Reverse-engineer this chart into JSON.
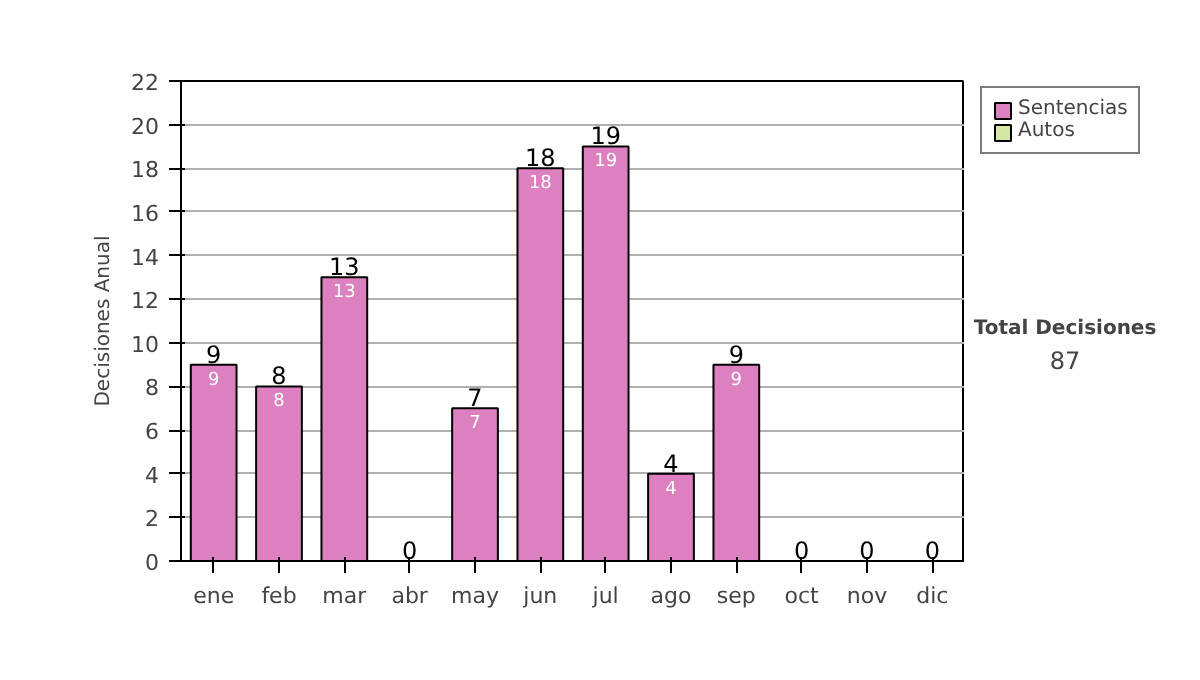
{
  "chart_data": {
    "type": "bar",
    "stacked": true,
    "ylabel": "Decisiones Anual",
    "categories": [
      "ene",
      "feb",
      "mar",
      "abr",
      "may",
      "jun",
      "jul",
      "ago",
      "sep",
      "oct",
      "nov",
      "dic"
    ],
    "series": [
      {
        "name": "Sentencias",
        "color": "#dd80bf",
        "values": [
          9,
          8,
          13,
          0,
          7,
          18,
          19,
          4,
          9,
          0,
          0,
          0
        ],
        "value_labels": [
          "9",
          "8",
          "13",
          null,
          "7",
          "18",
          "19",
          "4",
          "9",
          null,
          null,
          null
        ]
      },
      {
        "name": "Autos",
        "color": "#d4e8a4",
        "values": [
          0,
          0,
          0,
          0,
          0,
          0,
          0,
          0,
          0,
          0,
          0,
          0
        ]
      }
    ],
    "totals": [
      "9",
      "8",
      "13",
      "0",
      "7",
      "18",
      "19",
      "4",
      "9",
      "0",
      "0",
      "0"
    ],
    "ylim": [
      0,
      22
    ],
    "yticks": [
      0,
      2,
      4,
      6,
      8,
      10,
      12,
      14,
      16,
      18,
      20,
      22
    ],
    "grid": "y",
    "legend": "right",
    "annotations": [
      "Total Decisiones",
      "87"
    ]
  }
}
